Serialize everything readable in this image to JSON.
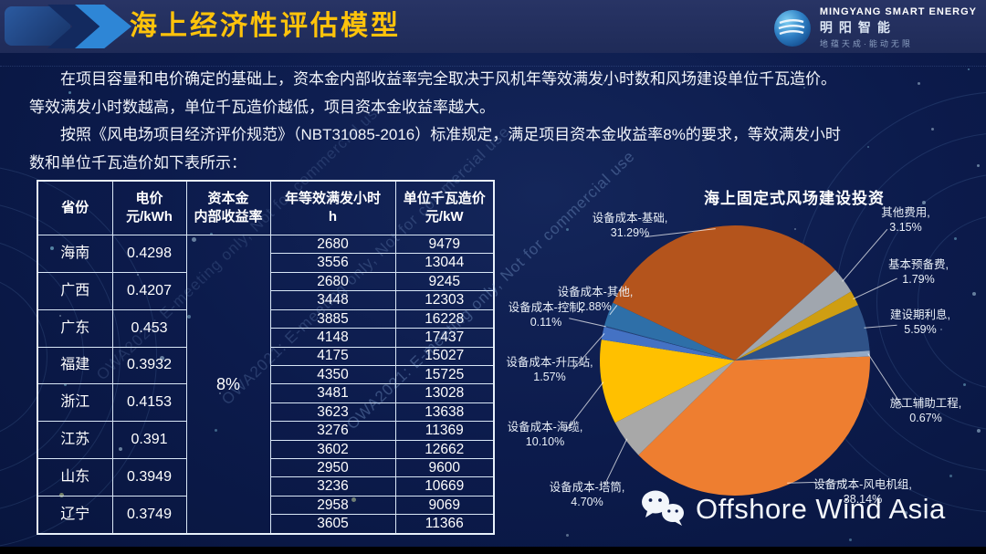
{
  "header": {
    "title": "海上经济性评估模型"
  },
  "logo": {
    "line_en": "MINGYANG SMART ENERGY",
    "line_cn": "明阳智能",
    "tagline": "地蕴天成·能动无限"
  },
  "intro": {
    "p1": "在项目容量和电价确定的基础上，资本金内部收益率完全取决于风机年等效满发小时数和风场建设单位千瓦造价。等效满发小时数越高，单位千瓦造价越低，项目资本金收益率越大。",
    "p2": "按照《风电场项目经济评价规范》（NBT31085-2016）标准规定，满足项目资本金收益率8%的要求，等效满发小时数和单位千瓦造价如下表所示："
  },
  "table": {
    "headers": [
      [
        "省份",
        ""
      ],
      [
        "电价",
        "元/kWh"
      ],
      [
        "资本金",
        "内部收益率"
      ],
      [
        "年等效满发小时",
        "h"
      ],
      [
        "单位千瓦造价",
        "元/kW"
      ]
    ],
    "irr": "8%",
    "provinces": [
      {
        "name": "海南",
        "price": "0.4298",
        "pairs": [
          [
            "2680",
            "9479"
          ],
          [
            "3556",
            "13044"
          ]
        ]
      },
      {
        "name": "广西",
        "price": "0.4207",
        "pairs": [
          [
            "2680",
            "9245"
          ],
          [
            "3448",
            "12303"
          ]
        ]
      },
      {
        "name": "广东",
        "price": "0.453",
        "pairs": [
          [
            "3885",
            "16228"
          ],
          [
            "4148",
            "17437"
          ]
        ]
      },
      {
        "name": "福建",
        "price": "0.3932",
        "pairs": [
          [
            "4175",
            "15027"
          ],
          [
            "4350",
            "15725"
          ]
        ]
      },
      {
        "name": "浙江",
        "price": "0.4153",
        "pairs": [
          [
            "3481",
            "13028"
          ],
          [
            "3623",
            "13638"
          ]
        ]
      },
      {
        "name": "江苏",
        "price": "0.391",
        "pairs": [
          [
            "3276",
            "11369"
          ],
          [
            "3602",
            "12662"
          ]
        ]
      },
      {
        "name": "山东",
        "price": "0.3949",
        "pairs": [
          [
            "2950",
            "9600"
          ],
          [
            "3236",
            "10669"
          ]
        ]
      },
      {
        "name": "辽宁",
        "price": "0.3749",
        "pairs": [
          [
            "2958",
            "9069"
          ],
          [
            "3605",
            "11366"
          ]
        ]
      }
    ]
  },
  "chart_data": {
    "type": "pie",
    "title": "海上固定式风场建设投资",
    "unit": "%",
    "start_angle_deg": -64.7,
    "slices": [
      {
        "label": "设备成本-基础",
        "value": 31.29,
        "display": "31.29%",
        "color": "#B4541C"
      },
      {
        "label": "其他费用",
        "value": 3.15,
        "display": "3.15%",
        "color": "#A0A6AE"
      },
      {
        "label": "基本预备费",
        "value": 1.79,
        "display": "1.79%",
        "color": "#CF9E12"
      },
      {
        "label": "建设期利息",
        "value": 5.59,
        "display": "5.59%",
        "color": "#2F5288"
      },
      {
        "label": "施工辅助工程",
        "value": 0.67,
        "display": "0.67%",
        "color": "#93A9C7"
      },
      {
        "label": "设备成本-风电机组",
        "value": 38.14,
        "display": "38.14%",
        "color": "#EE7E30"
      },
      {
        "label": "设备成本-塔筒",
        "value": 4.7,
        "display": "4.70%",
        "color": "#A8A8A8"
      },
      {
        "label": "设备成本-海缆",
        "value": 10.1,
        "display": "10.10%",
        "color": "#FFC000"
      },
      {
        "label": "设备成本-升压站",
        "value": 1.57,
        "display": "1.57%",
        "color": "#4472C4"
      },
      {
        "label": "设备成本-控制",
        "value": 0.11,
        "display": "0.11%",
        "color": "#264478"
      },
      {
        "label": "设备成本-其他",
        "value": 2.88,
        "display": "2.88%",
        "color": "#2E6FA8"
      }
    ]
  },
  "watermarks": {
    "diagonal": "OWA2021: E-meeting only, Not for commercial use",
    "brand": "Offshore Wind Asia"
  }
}
